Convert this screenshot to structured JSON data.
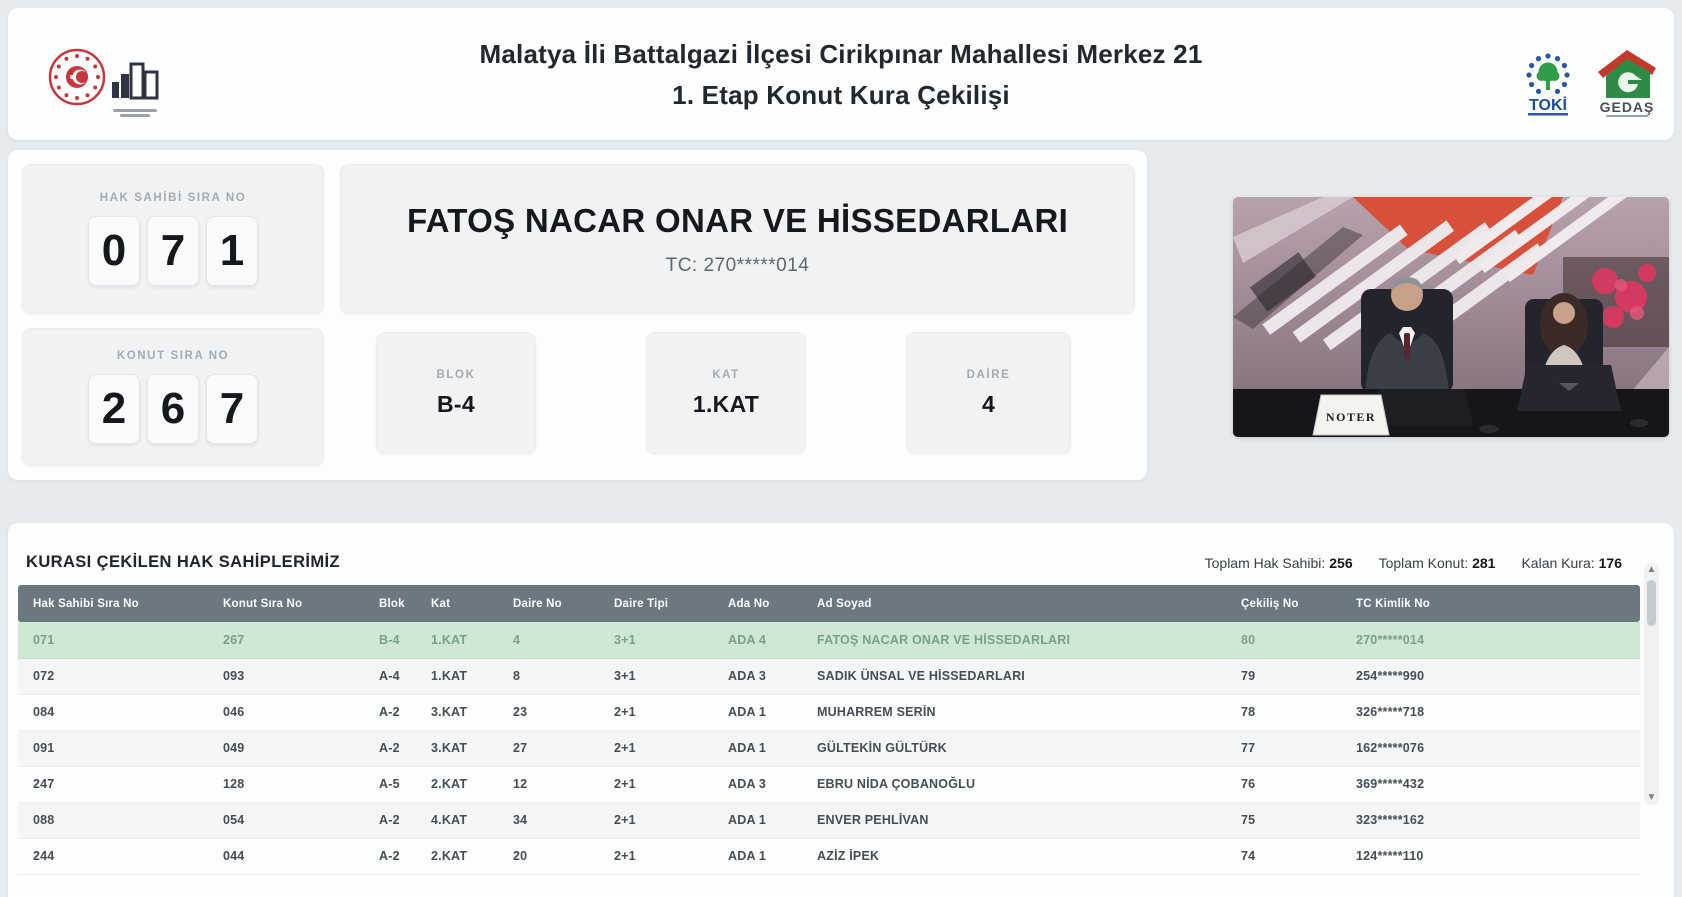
{
  "header": {
    "title_line1": "Malatya İli Battalgazi İlçesi Cirikpınar Mahallesi Merkez 21",
    "title_line2": "1. Etap Konut Kura Çekilişi",
    "logos": {
      "toki_text": "TOKİ",
      "gedas_text": "GEDAŞ"
    }
  },
  "current": {
    "hak_sahibi": {
      "label": "HAK SAHİBİ SIRA NO",
      "digits": [
        "0",
        "7",
        "1"
      ]
    },
    "konut": {
      "label": "KONUT SIRA NO",
      "digits": [
        "2",
        "6",
        "7"
      ]
    },
    "name": "FATOŞ NACAR ONAR VE HİSSEDARLARI",
    "tc": "TC: 270*****014",
    "blok": {
      "label": "BLOK",
      "value": "B-4"
    },
    "kat": {
      "label": "KAT",
      "value": "1.KAT"
    },
    "daire": {
      "label": "DAİRE",
      "value": "4"
    }
  },
  "video": {
    "placard": "NOTER"
  },
  "results": {
    "title": "KURASI ÇEKİLEN HAK SAHİPLERİMİZ",
    "stats": [
      {
        "label": "Toplam Hak Sahibi:",
        "value": "256"
      },
      {
        "label": "Toplam Konut:",
        "value": "281"
      },
      {
        "label": "Kalan Kura:",
        "value": "176"
      }
    ],
    "columns": [
      "Hak Sahibi Sıra No",
      "Konut Sıra No",
      "Blok",
      "Kat",
      "Daire No",
      "Daire Tipi",
      "Ada No",
      "Ad Soyad",
      "Çekiliş No",
      "TC Kimlik No"
    ],
    "highlighted_row": 0,
    "rows": [
      [
        "071",
        "267",
        "B-4",
        "1.KAT",
        "4",
        "3+1",
        "ADA 4",
        "FATOŞ NACAR ONAR VE HİSSEDARLARI",
        "80",
        "270*****014"
      ],
      [
        "072",
        "093",
        "A-4",
        "1.KAT",
        "8",
        "3+1",
        "ADA 3",
        "SADIK ÜNSAL VE HİSSEDARLARI",
        "79",
        "254*****990"
      ],
      [
        "084",
        "046",
        "A-2",
        "3.KAT",
        "23",
        "2+1",
        "ADA 1",
        "MUHARREM SERİN",
        "78",
        "326*****718"
      ],
      [
        "091",
        "049",
        "A-2",
        "3.KAT",
        "27",
        "2+1",
        "ADA 1",
        "GÜLTEKİN GÜLTÜRK",
        "77",
        "162*****076"
      ],
      [
        "247",
        "128",
        "A-5",
        "2.KAT",
        "12",
        "2+1",
        "ADA 3",
        "EBRU NİDA ÇOBANOĞLU",
        "76",
        "369*****432"
      ],
      [
        "088",
        "054",
        "A-2",
        "4.KAT",
        "34",
        "2+1",
        "ADA 1",
        "ENVER PEHLİVAN",
        "75",
        "323*****162"
      ],
      [
        "244",
        "044",
        "A-2",
        "2.KAT",
        "20",
        "2+1",
        "ADA 1",
        "AZİZ İPEK",
        "74",
        "124*****110"
      ]
    ]
  },
  "colors": {
    "highlight_row_bg": "#cee8d4",
    "highlight_row_text": "#7ba184",
    "table_header_bg": "#6c7880",
    "accent_red": "#c9353c",
    "toki_blue": "#1b4e9b",
    "toki_green": "#2f9e44",
    "gedas_green": "#2e8b46",
    "gedas_red": "#c0392b"
  }
}
